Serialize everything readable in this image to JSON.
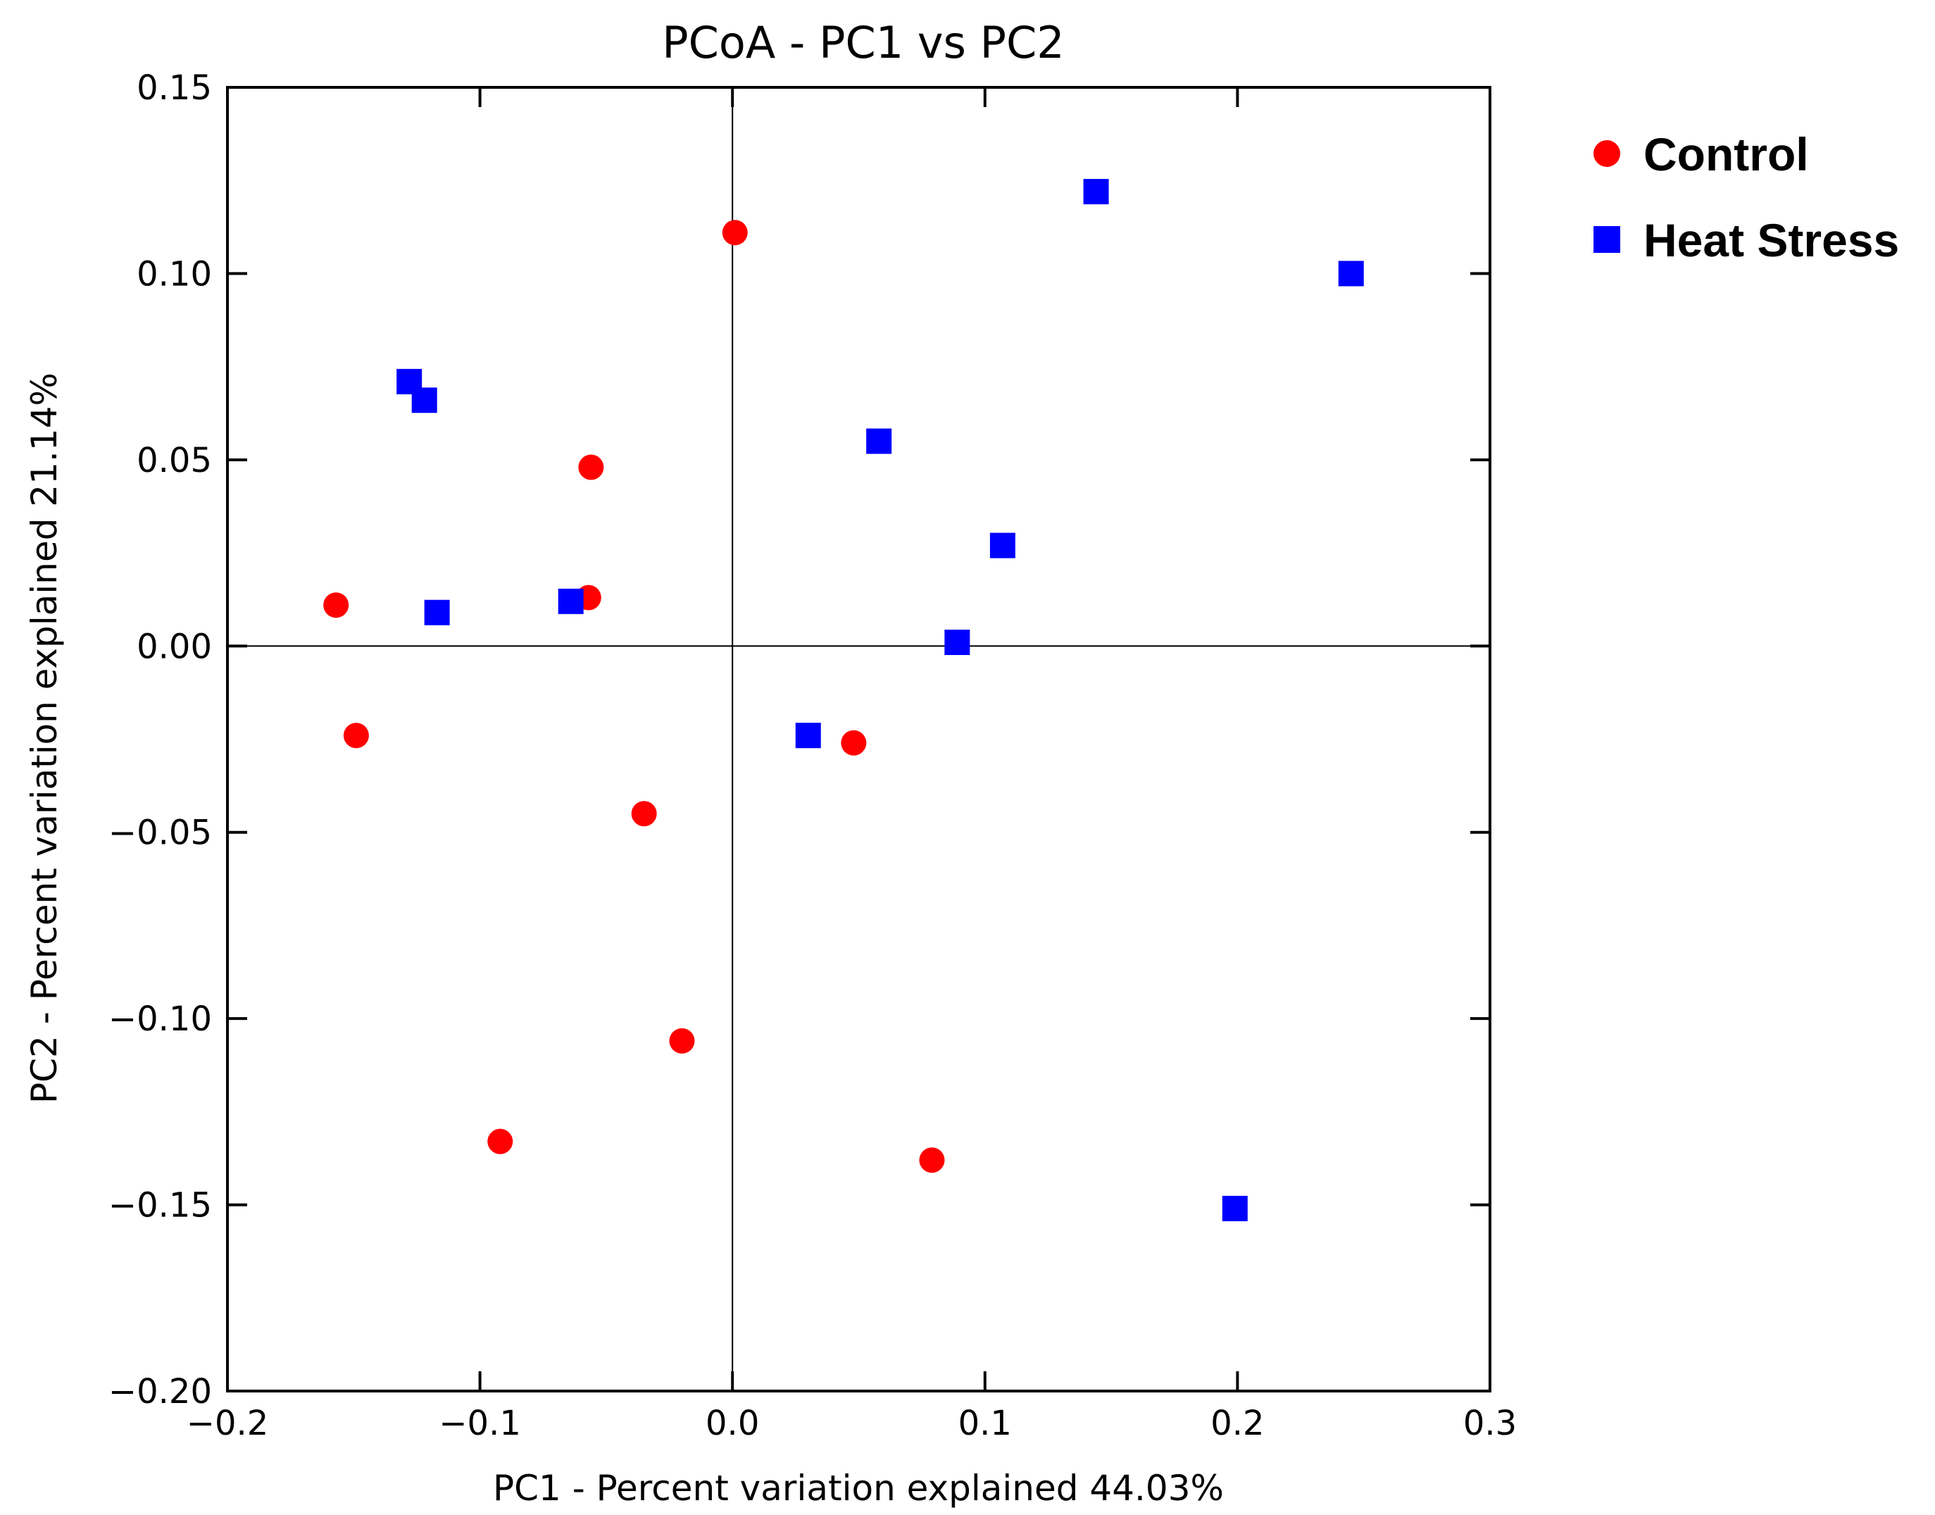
{
  "chart_data": {
    "type": "scatter",
    "title": "PCoA - PC1 vs PC2",
    "xlabel": "PC1 - Percent variation explained 44.03%",
    "ylabel": "PC2 - Percent variation explained 21.14%",
    "xlim": [
      -0.2,
      0.3
    ],
    "ylim": [
      -0.2,
      0.15
    ],
    "x_ticks": [
      -0.2,
      -0.1,
      0.0,
      0.1,
      0.2,
      0.3
    ],
    "x_tick_labels": [
      "−0.2",
      "−0.1",
      "0.0",
      "0.1",
      "0.2",
      "0.3"
    ],
    "y_ticks": [
      0.15,
      0.1,
      0.05,
      0.0,
      -0.05,
      -0.1,
      -0.15,
      -0.2
    ],
    "y_tick_labels": [
      "0.15",
      "0.10",
      "0.05",
      "0.00",
      "−0.05",
      "−0.10",
      "−0.15",
      "−0.20"
    ],
    "grid": false,
    "zero_lines": true,
    "legend_position": "right-top",
    "series": [
      {
        "name": "Control",
        "marker": "circle",
        "color": "#ff0000",
        "points": [
          {
            "x": 0.001,
            "y": 0.111
          },
          {
            "x": -0.056,
            "y": 0.048
          },
          {
            "x": -0.057,
            "y": 0.013
          },
          {
            "x": -0.157,
            "y": 0.011
          },
          {
            "x": -0.149,
            "y": -0.024
          },
          {
            "x": -0.035,
            "y": -0.045
          },
          {
            "x": -0.02,
            "y": -0.106
          },
          {
            "x": -0.092,
            "y": -0.133
          },
          {
            "x": 0.048,
            "y": -0.026
          },
          {
            "x": 0.079,
            "y": -0.138
          }
        ]
      },
      {
        "name": "Heat Stress",
        "marker": "square",
        "color": "#0000ff",
        "points": [
          {
            "x": 0.144,
            "y": 0.122
          },
          {
            "x": 0.245,
            "y": 0.1
          },
          {
            "x": -0.128,
            "y": 0.071
          },
          {
            "x": -0.122,
            "y": 0.066
          },
          {
            "x": 0.058,
            "y": 0.055
          },
          {
            "x": 0.107,
            "y": 0.027
          },
          {
            "x": -0.117,
            "y": 0.009
          },
          {
            "x": -0.064,
            "y": 0.012
          },
          {
            "x": 0.089,
            "y": 0.001
          },
          {
            "x": 0.03,
            "y": -0.024
          },
          {
            "x": 0.199,
            "y": -0.151
          }
        ]
      }
    ]
  }
}
